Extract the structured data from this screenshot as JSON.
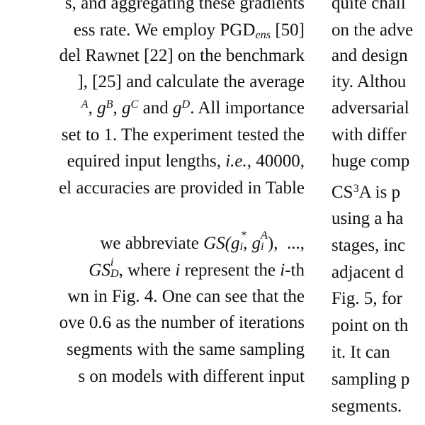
{
  "left_column": {
    "l1": "s, and aggregating these gradients",
    "l2_a": "ess rate. We employ PGD",
    "l2_sub": "ens",
    "l2_b": " [50]",
    "l3": "del Rawnet [22] on the benchmark",
    "l4": "], [25] and calculate the average",
    "l5_a": ", ",
    "l5_sup_a": "A",
    "l5_b": "g",
    "l5_sup_b": "B",
    "l5_c": "g",
    "l5_sup_c": "C",
    "l5_and": " and ",
    "l5_d": "g",
    "l5_sup_d": "D",
    "l5_tail": ". All importance",
    "l6": "set to 1. The experiment tested the",
    "l7_a": "equired input lengths, ",
    "l7_ie": "i.e.,",
    "l7_b": " 40000,",
    "l8": "el accuracies are provided in Table",
    "l9_a": "we abbreviate ",
    "l9_gs": "GS(g",
    "l9_sub_i": "i",
    "l9_sup_star": "*",
    "l9_comma": ", g",
    "l9_sup_A": "A",
    "l9_sub_i2": "i",
    "l9_close": "),",
    "l9_dots": "...,",
    "l10_gs": "GS",
    "l10_sup": "i",
    "l10_sub": "D",
    "l10_a": ", where ",
    "l10_i": "i",
    "l10_b": " represent the ",
    "l10_i2": "i",
    "l10_c": "-th",
    "l11": "wn in Fig. 4. One can see that the",
    "l12": "ove 0.6 as the number of iterations",
    "l13": "segments with the same sampling",
    "l14": "s on models with different input"
  },
  "right_column": {
    "r1": "quite chall",
    "r2": "on the adve",
    "r3": "and design",
    "r4": "ity. Althou",
    "r5": "adversarial",
    "r6": "with differ",
    "r7": "huge comp",
    "r8_cs": "CS",
    "r8_sup": "3",
    "r8_b": "A is p",
    "r9": "using a ha",
    "r10": "stages, inc",
    "r11": "adjacent d",
    "r12": "Fig. 5, for",
    "r13": "point on th",
    "r14": "it. It can",
    "r15": "sampling p",
    "r16": "segments."
  }
}
